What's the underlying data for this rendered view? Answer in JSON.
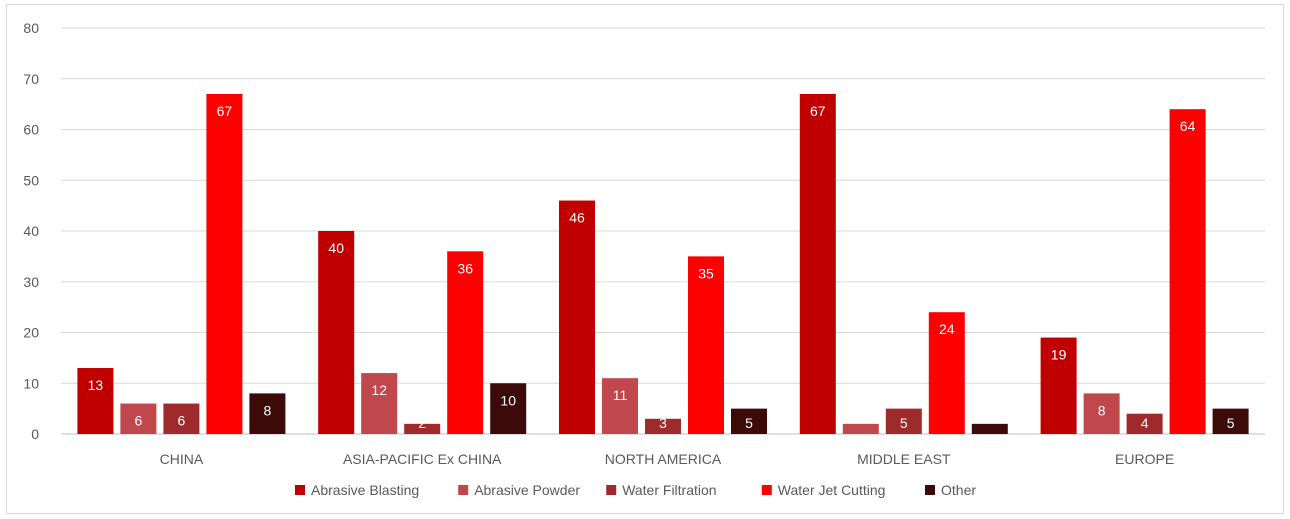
{
  "chart_data": {
    "type": "bar",
    "title": "",
    "xlabel": "",
    "ylabel": "",
    "ylim": [
      0,
      80
    ],
    "yticks": [
      0,
      10,
      20,
      30,
      40,
      50,
      60,
      70,
      80
    ],
    "grid": true,
    "legend_position": "bottom",
    "categories": [
      "CHINA",
      "ASIA-PACIFIC Ex CHINA",
      "NORTH AMERICA",
      "MIDDLE EAST",
      "EUROPE"
    ],
    "series": [
      {
        "name": "Abrasive Blasting",
        "color": "#c00000",
        "values": [
          13,
          40,
          46,
          67,
          19
        ],
        "labels": [
          "13",
          "40",
          "46",
          "67",
          "19"
        ]
      },
      {
        "name": "Abrasive Powder",
        "color": "#c0474b",
        "values": [
          6,
          12,
          11,
          2,
          8
        ],
        "labels": [
          "6",
          "12",
          "11",
          "",
          "8"
        ]
      },
      {
        "name": "Water Filtration",
        "color": "#9e2a2b",
        "values": [
          6,
          2,
          3,
          5,
          4
        ],
        "labels": [
          "6",
          "2",
          "3",
          "5",
          "4"
        ]
      },
      {
        "name": "Water Jet Cutting",
        "color": "#ff0000",
        "values": [
          67,
          36,
          35,
          24,
          64
        ],
        "labels": [
          "67",
          "36",
          "35",
          "24",
          "64"
        ]
      },
      {
        "name": "Other",
        "color": "#3d0a0a",
        "values": [
          8,
          10,
          5,
          2,
          5
        ],
        "labels": [
          "8",
          "10",
          "5",
          "",
          "5"
        ]
      }
    ]
  }
}
